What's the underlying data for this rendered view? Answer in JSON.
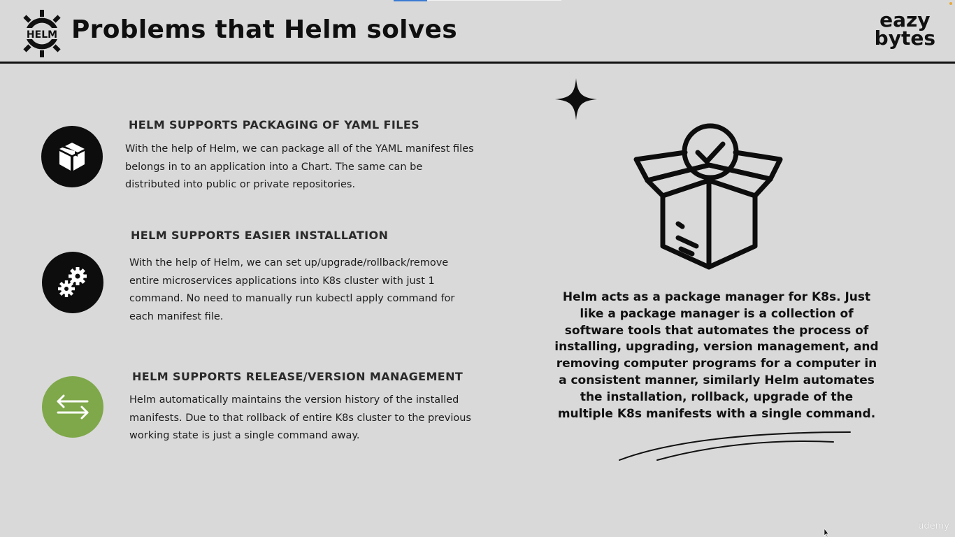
{
  "header": {
    "logo_text": "HELM",
    "title": "Problems that Helm solves",
    "brand_line1": "eazy",
    "brand_line2": "bytes"
  },
  "features": [
    {
      "icon": "package-icon",
      "heading": "HELM SUPPORTS PACKAGING OF YAML FILES",
      "text": "With the help of Helm, we can package all of the YAML manifest files belongs in to an application into a Chart. The same can be distributed into public or private repositories."
    },
    {
      "icon": "gears-icon",
      "heading": "HELM SUPPORTS EASIER INSTALLATION",
      "text": "With the help of Helm, we can set up/upgrade/rollback/remove entire microservices applications into K8s cluster with just 1 command. No need to manually run kubectl apply command for each manifest file."
    },
    {
      "icon": "swap-arrows-icon",
      "heading": "HELM SUPPORTS RELEASE/VERSION MANAGEMENT",
      "text": "Helm automatically maintains the version history of the installed manifests. Due to that rollback of entire K8s cluster to the previous working state is just a single command away."
    }
  ],
  "summary": {
    "text": "Helm acts as a package manager for K8s. Just like a package manager  is a collection of software tools that automates the process of  installing, upgrading, version management, and removing computer programs for a computer in a consistent manner, similarly Helm automates the installation, rollback, upgrade of the multiple K8s  manifests with a single command."
  },
  "watermark": "ūdemy",
  "colors": {
    "background": "#d9d9d9",
    "icon_dark": "#0d0d0d",
    "icon_green": "#7fa84a",
    "text": "#1a1a1a"
  }
}
